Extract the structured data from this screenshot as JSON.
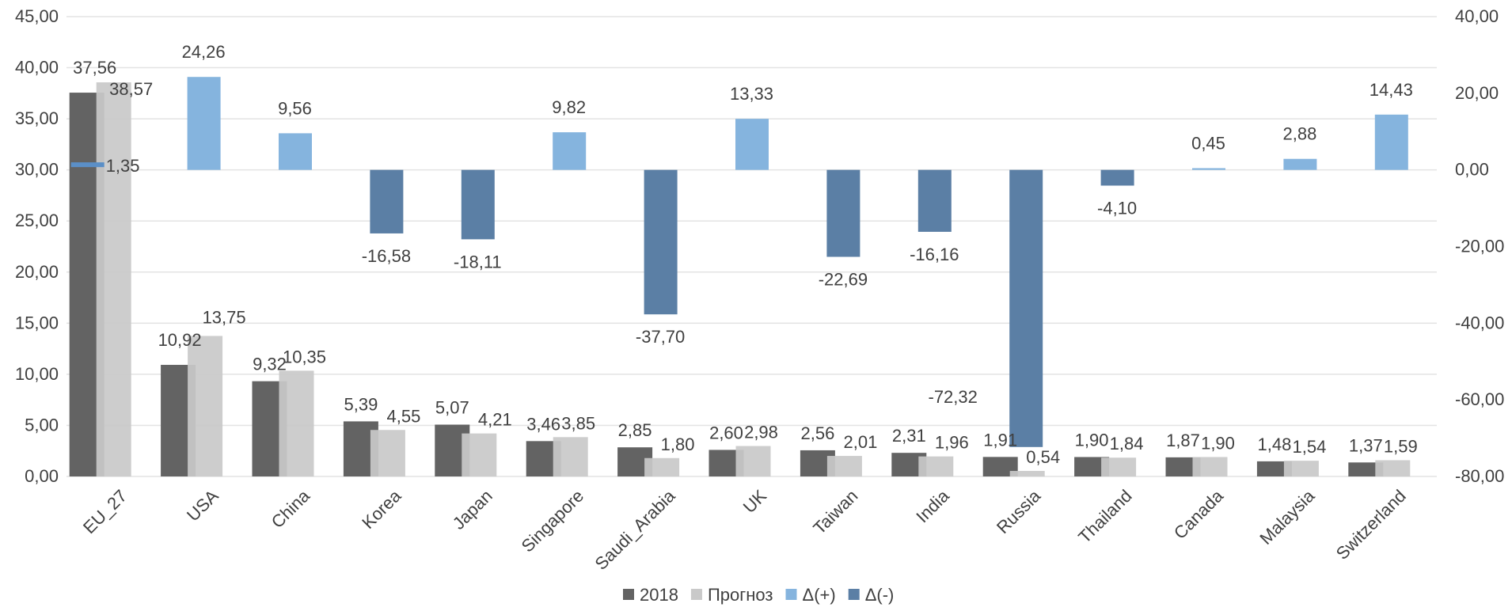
{
  "chart_data": {
    "type": "bar",
    "categories": [
      "EU_27",
      "USA",
      "China",
      "Korea",
      "Japan",
      "Singapore",
      "Saudi_Arabia",
      "UK",
      "Taiwan",
      "India",
      "Russia",
      "Thailand",
      "Canada",
      "Malaysia",
      "Switzerland"
    ],
    "series": [
      {
        "name": "2018",
        "axis": "left",
        "color": "#636363",
        "values": [
          37.56,
          10.92,
          9.32,
          5.39,
          5.07,
          3.46,
          2.85,
          2.6,
          2.56,
          2.31,
          1.91,
          1.9,
          1.87,
          1.48,
          1.37
        ],
        "labels": [
          "37,56",
          "10,92",
          "9,32",
          "5,39",
          "5,07",
          "3,46",
          "2,85",
          "2,60",
          "2,56",
          "2,31",
          "1,91",
          "1,90",
          "1,87",
          "1,48",
          "1,37"
        ]
      },
      {
        "name": "Прогноз",
        "axis": "left",
        "color": "#c9c9c9",
        "values": [
          38.57,
          13.75,
          10.35,
          4.55,
          4.21,
          3.85,
          1.8,
          2.98,
          2.01,
          1.96,
          0.54,
          1.84,
          1.9,
          1.54,
          1.59
        ],
        "labels": [
          "38,57",
          "13,75",
          "10,35",
          "4,55",
          "4,21",
          "3,85",
          "1,80",
          "2,98",
          "2,01",
          "1,96",
          "0,54",
          "1,84",
          "1,90",
          "1,54",
          "1,59"
        ]
      },
      {
        "name": "Δ(+)",
        "axis": "right",
        "color": "#85b4de",
        "values": [
          null,
          24.26,
          9.56,
          null,
          null,
          9.82,
          null,
          13.33,
          null,
          null,
          null,
          null,
          0.45,
          2.88,
          14.43
        ],
        "labels": [
          "",
          "24,26",
          "9,56",
          "",
          "",
          "9,82",
          "",
          "13,33",
          "",
          "",
          "",
          "",
          "0,45",
          "2,88",
          "14,43"
        ]
      },
      {
        "name": "Δ(-)",
        "axis": "right",
        "color": "#5b7fa5",
        "values": [
          null,
          null,
          null,
          -16.58,
          -18.11,
          null,
          -37.7,
          null,
          -22.69,
          -16.16,
          -72.32,
          -4.1,
          null,
          null,
          null
        ],
        "labels": [
          "",
          "",
          "",
          "-16,58",
          "-18,11",
          "",
          "-37,70",
          "",
          "-22,69",
          "-16,16",
          "-72,32",
          "-4,10",
          "",
          "",
          ""
        ]
      }
    ],
    "extra_labels": [
      {
        "category": "EU_27",
        "text": "1,35",
        "value": 1.35,
        "axis": "right",
        "color": "#5b8fc7"
      }
    ],
    "left_axis": {
      "min": 0,
      "max": 45,
      "step": 5,
      "ticks": [
        "0,00",
        "5,00",
        "10,00",
        "15,00",
        "20,00",
        "25,00",
        "30,00",
        "35,00",
        "40,00",
        "45,00"
      ]
    },
    "right_axis": {
      "min": -80,
      "max": 40,
      "step": 20,
      "ticks": [
        "-80,00",
        "-60,00",
        "-40,00",
        "-20,00",
        "0,00",
        "20,00",
        "40,00"
      ]
    },
    "grid": true,
    "legend_position": "bottom"
  }
}
